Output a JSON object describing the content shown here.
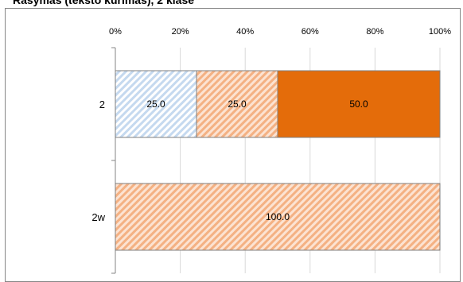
{
  "title": "Rašymas (teksto kūrimas), 2 klasė",
  "chart_data": {
    "type": "bar",
    "orientation": "horizontal",
    "stacked": "percent",
    "categories": [
      "2",
      "2w"
    ],
    "xlim": [
      0,
      100
    ],
    "x_ticks": [
      "0%",
      "20%",
      "40%",
      "60%",
      "80%",
      "100%"
    ],
    "grid": true,
    "legend": "none",
    "series": [
      {
        "values": [
          25.0,
          0
        ],
        "labels": [
          "25.0",
          ""
        ],
        "color": "#c5d9ef",
        "pattern": "diagonal-hatch"
      },
      {
        "values": [
          25.0,
          100.0
        ],
        "labels": [
          "25.0",
          "100.0"
        ],
        "color": "#f6c9a8",
        "pattern": "diagonal-hatch"
      },
      {
        "values": [
          50.0,
          0
        ],
        "labels": [
          "50.0",
          ""
        ],
        "color": "#e46c0a",
        "pattern": "solid"
      }
    ]
  }
}
